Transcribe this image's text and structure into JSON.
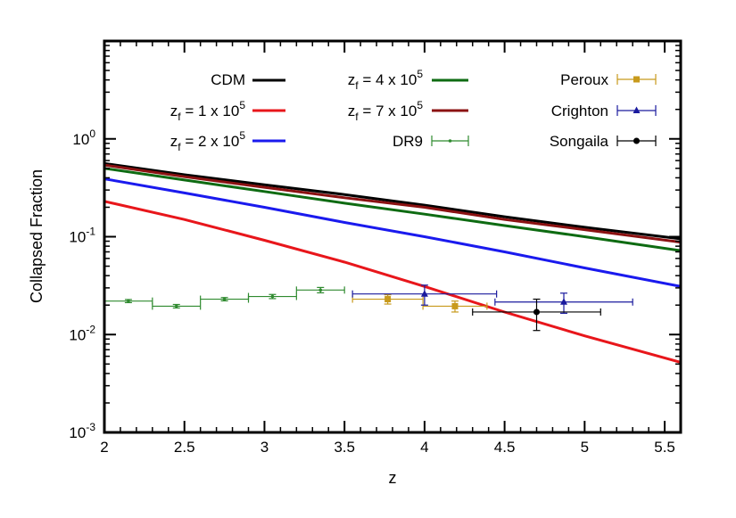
{
  "chart_data": {
    "type": "line",
    "xlabel": "z",
    "ylabel": "Collapsed Fraction",
    "xlim": [
      2.0,
      5.6
    ],
    "ylim": [
      0.001,
      10
    ],
    "yscale": "log",
    "grid": false,
    "legend_position": "top",
    "x_ticks": [
      "2",
      "2.5",
      "3",
      "3.5",
      "4",
      "4.5",
      "5",
      "5.5"
    ],
    "x_tick_values": [
      2,
      2.5,
      3,
      3.5,
      4,
      4.5,
      5,
      5.5
    ],
    "y_tick_values": [
      0.001,
      0.01,
      0.1,
      1
    ],
    "y_ticks": [
      {
        "base": "10",
        "exp": "-3"
      },
      {
        "base": "10",
        "exp": "-2"
      },
      {
        "base": "10",
        "exp": "-1"
      },
      {
        "base": "10",
        "exp": "0"
      }
    ],
    "lines": [
      {
        "key": "cdm",
        "label": "CDM",
        "color": "#000000",
        "x": [
          2.0,
          2.5,
          3.0,
          3.5,
          4.0,
          4.5,
          5.0,
          5.6
        ],
        "y": [
          0.56,
          0.43,
          0.34,
          0.27,
          0.21,
          0.16,
          0.125,
          0.095
        ]
      },
      {
        "key": "zf1",
        "label_main": "z",
        "label_sub": "f",
        "label_rest": " = 1 x 10",
        "label_sup": "5",
        "color": "#e8161b",
        "x": [
          2.0,
          2.5,
          3.0,
          3.5,
          4.0,
          4.5,
          5.0,
          5.6
        ],
        "y": [
          0.23,
          0.15,
          0.092,
          0.055,
          0.031,
          0.017,
          0.0097,
          0.0052
        ]
      },
      {
        "key": "zf2",
        "label_main": "z",
        "label_sub": "f",
        "label_rest": " = 2 x 10",
        "label_sup": "5",
        "color": "#1a1aee",
        "x": [
          2.0,
          2.5,
          3.0,
          3.5,
          4.0,
          4.5,
          5.0,
          5.6
        ],
        "y": [
          0.39,
          0.28,
          0.2,
          0.14,
          0.1,
          0.07,
          0.048,
          0.031
        ]
      },
      {
        "key": "zf4",
        "label_main": "z",
        "label_sub": "f",
        "label_rest": " = 4 x 10",
        "label_sup": "5",
        "color": "#0e6b12",
        "x": [
          2.0,
          2.5,
          3.0,
          3.5,
          4.0,
          4.5,
          5.0,
          5.6
        ],
        "y": [
          0.5,
          0.38,
          0.29,
          0.22,
          0.17,
          0.13,
          0.1,
          0.072
        ]
      },
      {
        "key": "zf7",
        "label_main": "z",
        "label_sub": "f",
        "label_rest": " = 7 x 10",
        "label_sup": "5",
        "color": "#8b1212",
        "x": [
          2.0,
          2.5,
          3.0,
          3.5,
          4.0,
          4.5,
          5.0,
          5.6
        ],
        "y": [
          0.54,
          0.41,
          0.32,
          0.25,
          0.2,
          0.15,
          0.118,
          0.088
        ]
      }
    ],
    "points": [
      {
        "key": "dr9",
        "label": "DR9",
        "color": "#2f8a2f",
        "marker": "dot",
        "data": [
          {
            "x": 2.15,
            "y": 0.022,
            "xerr": 0.15,
            "yerr": 0.0008
          },
          {
            "x": 2.45,
            "y": 0.0195,
            "xerr": 0.15,
            "yerr": 0.0008
          },
          {
            "x": 2.75,
            "y": 0.023,
            "xerr": 0.15,
            "yerr": 0.0009
          },
          {
            "x": 3.05,
            "y": 0.0245,
            "xerr": 0.15,
            "yerr": 0.0012
          },
          {
            "x": 3.35,
            "y": 0.0285,
            "xerr": 0.15,
            "yerr": 0.0018
          }
        ]
      },
      {
        "key": "peroux",
        "label": "Peroux",
        "color": "#c89a1c",
        "marker": "square",
        "data": [
          {
            "x": 3.77,
            "y": 0.023,
            "xerr": 0.22,
            "yerr": 0.0025
          },
          {
            "x": 4.19,
            "y": 0.0195,
            "xerr": 0.2,
            "yerr": 0.0025
          }
        ]
      },
      {
        "key": "crighton",
        "label": "Crighton",
        "color": "#1a1a9e",
        "marker": "triangle",
        "data": [
          {
            "x": 4.0,
            "y": 0.026,
            "xerr": 0.45,
            "yerr": 0.006
          },
          {
            "x": 4.87,
            "y": 0.0215,
            "xerr": 0.43,
            "yerr": 0.005
          }
        ]
      },
      {
        "key": "songaila",
        "label": "Songaila",
        "color": "#000000",
        "marker": "circle",
        "data": [
          {
            "x": 4.7,
            "y": 0.017,
            "xerr": 0.4,
            "yerr": 0.006
          }
        ]
      }
    ]
  }
}
